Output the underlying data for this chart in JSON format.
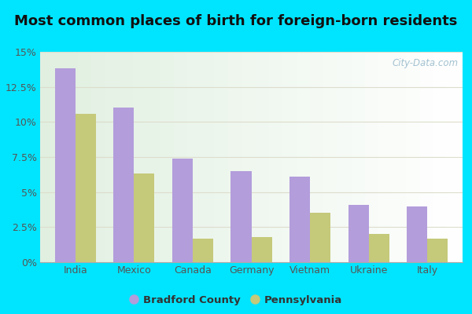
{
  "title": "Most common places of birth for foreign-born residents",
  "categories": [
    "India",
    "Mexico",
    "Canada",
    "Germany",
    "Vietnam",
    "Ukraine",
    "Italy"
  ],
  "bradford_values": [
    13.8,
    11.0,
    7.4,
    6.5,
    6.1,
    4.1,
    4.0
  ],
  "pennsylvania_values": [
    10.6,
    6.3,
    1.7,
    1.8,
    3.5,
    2.0,
    1.7
  ],
  "bradford_color": "#b39ddb",
  "pennsylvania_color": "#c5c97a",
  "bar_width": 0.35,
  "ylim": [
    0,
    15
  ],
  "yticks": [
    0,
    2.5,
    5.0,
    7.5,
    10.0,
    12.5,
    15.0
  ],
  "ytick_labels": [
    "0%",
    "2.5%",
    "5%",
    "7.5%",
    "10%",
    "12.5%",
    "15%"
  ],
  "background_outer": "#00e5ff",
  "background_inner_topleft": "#e8f5e9",
  "background_inner_bottomright": "#ffffff",
  "legend_label_bradford": "Bradford County",
  "legend_label_pennsylvania": "Pennsylvania",
  "watermark": "City-Data.com",
  "title_fontsize": 13,
  "axis_label_fontsize": 9,
  "gridline_color": "#ddddcc",
  "tick_color": "#555555"
}
